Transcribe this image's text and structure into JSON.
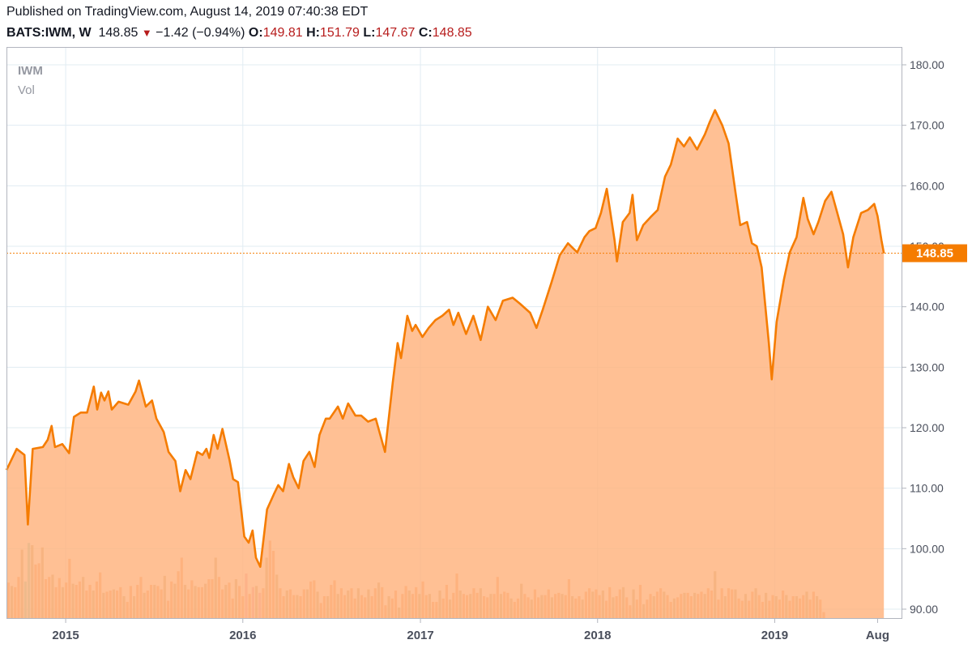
{
  "header": {
    "published": "Published on TradingView.com, August 14, 2019 07:40:38 EDT",
    "symbol": "BATS:IWM, W",
    "last": "148.85",
    "change": "−1.42 (−0.94%)",
    "open_label": "O:",
    "open": "149.81",
    "high_label": "H:",
    "high": "151.79",
    "low_label": "L:",
    "low": "147.67",
    "close_label": "C:",
    "close": "148.85"
  },
  "legend": {
    "ticker": "IWM",
    "volume": "Vol"
  },
  "price_badge": "148.85",
  "colors": {
    "line": "#f57c00",
    "area": "#ffb27d",
    "price_badge": "#f57c00",
    "grid": "#e1ecf2",
    "vol_orange": "#f7a672",
    "vol_olive": "#c9b083",
    "vol_teal": "#8fd3c7",
    "vol_pink": "#f3a1b5",
    "negative": "#b71c1c"
  },
  "chart_data": {
    "type": "area",
    "title": "IWM",
    "interval": "W",
    "y_ticks": [
      "180.00",
      "170.00",
      "160.00",
      "150.00",
      "140.00",
      "130.00",
      "120.00",
      "110.00",
      "100.00",
      "90.00"
    ],
    "ylim": [
      90,
      180
    ],
    "x_ticks": [
      "2015",
      "2016",
      "2017",
      "2018",
      "2019",
      "Aug"
    ],
    "x_tick_dates": [
      "2015-01-01",
      "2016-01-01",
      "2017-01-01",
      "2018-01-01",
      "2019-01-01",
      "2019-08-01"
    ],
    "xlim": [
      "2014-09-01",
      "2019-09-21"
    ],
    "last_price": 148.85,
    "grid": true,
    "series": [
      {
        "name": "IWM",
        "points": [
          [
            "2014-09-01",
            113.0
          ],
          [
            "2014-09-22",
            116.5
          ],
          [
            "2014-10-08",
            115.5
          ],
          [
            "2014-10-15",
            104.0
          ],
          [
            "2014-10-25",
            116.5
          ],
          [
            "2014-11-15",
            116.8
          ],
          [
            "2014-11-25",
            118.0
          ],
          [
            "2014-12-03",
            120.3
          ],
          [
            "2014-12-10",
            116.8
          ],
          [
            "2014-12-25",
            117.3
          ],
          [
            "2015-01-08",
            115.8
          ],
          [
            "2015-01-18",
            121.8
          ],
          [
            "2015-02-01",
            122.5
          ],
          [
            "2015-02-14",
            122.5
          ],
          [
            "2015-02-28",
            126.8
          ],
          [
            "2015-03-07",
            123.0
          ],
          [
            "2015-03-15",
            125.8
          ],
          [
            "2015-03-22",
            124.5
          ],
          [
            "2015-03-30",
            126.0
          ],
          [
            "2015-04-06",
            123.0
          ],
          [
            "2015-04-20",
            124.3
          ],
          [
            "2015-05-10",
            123.8
          ],
          [
            "2015-05-25",
            126.0
          ],
          [
            "2015-06-01",
            127.8
          ],
          [
            "2015-06-15",
            123.5
          ],
          [
            "2015-06-28",
            124.5
          ],
          [
            "2015-07-07",
            121.5
          ],
          [
            "2015-07-22",
            119.3
          ],
          [
            "2015-08-01",
            116.0
          ],
          [
            "2015-08-15",
            114.5
          ],
          [
            "2015-08-25",
            109.5
          ],
          [
            "2015-09-05",
            113.0
          ],
          [
            "2015-09-15",
            111.5
          ],
          [
            "2015-09-29",
            116.0
          ],
          [
            "2015-10-10",
            115.5
          ],
          [
            "2015-10-18",
            116.5
          ],
          [
            "2015-10-24",
            115.0
          ],
          [
            "2015-11-02",
            118.8
          ],
          [
            "2015-11-10",
            116.5
          ],
          [
            "2015-11-20",
            119.8
          ],
          [
            "2015-12-05",
            114.5
          ],
          [
            "2015-12-12",
            111.5
          ],
          [
            "2015-12-22",
            111.0
          ],
          [
            "2016-01-04",
            102.0
          ],
          [
            "2016-01-13",
            101.0
          ],
          [
            "2016-01-21",
            103.0
          ],
          [
            "2016-01-28",
            98.5
          ],
          [
            "2016-02-06",
            97.0
          ],
          [
            "2016-02-20",
            106.5
          ],
          [
            "2016-03-05",
            109.0
          ],
          [
            "2016-03-14",
            110.5
          ],
          [
            "2016-03-24",
            109.5
          ],
          [
            "2016-04-05",
            114.0
          ],
          [
            "2016-04-14",
            111.8
          ],
          [
            "2016-04-25",
            110.0
          ],
          [
            "2016-05-05",
            114.5
          ],
          [
            "2016-05-17",
            116.0
          ],
          [
            "2016-05-28",
            113.5
          ],
          [
            "2016-06-07",
            118.8
          ],
          [
            "2016-06-20",
            121.5
          ],
          [
            "2016-06-28",
            121.5
          ],
          [
            "2016-07-15",
            123.5
          ],
          [
            "2016-07-25",
            121.5
          ],
          [
            "2016-08-05",
            124.0
          ],
          [
            "2016-08-20",
            122.0
          ],
          [
            "2016-09-01",
            122.0
          ],
          [
            "2016-09-15",
            121.0
          ],
          [
            "2016-10-01",
            121.5
          ],
          [
            "2016-10-20",
            116.0
          ],
          [
            "2016-11-05",
            127.5
          ],
          [
            "2016-11-15",
            134.0
          ],
          [
            "2016-11-22",
            131.5
          ],
          [
            "2016-12-05",
            138.5
          ],
          [
            "2016-12-15",
            136.0
          ],
          [
            "2016-12-22",
            137.0
          ],
          [
            "2017-01-05",
            135.0
          ],
          [
            "2017-01-18",
            136.5
          ],
          [
            "2017-02-01",
            137.8
          ],
          [
            "2017-02-15",
            138.5
          ],
          [
            "2017-03-01",
            139.5
          ],
          [
            "2017-03-10",
            137.0
          ],
          [
            "2017-03-20",
            139.0
          ],
          [
            "2017-04-05",
            135.5
          ],
          [
            "2017-04-20",
            138.5
          ],
          [
            "2017-05-05",
            134.5
          ],
          [
            "2017-05-20",
            140.0
          ],
          [
            "2017-06-05",
            137.8
          ],
          [
            "2017-06-20",
            141.0
          ],
          [
            "2017-07-10",
            141.5
          ],
          [
            "2017-07-25",
            140.5
          ],
          [
            "2017-08-15",
            139.0
          ],
          [
            "2017-08-28",
            136.5
          ],
          [
            "2017-09-10",
            139.5
          ],
          [
            "2017-09-28",
            144.0
          ],
          [
            "2017-10-15",
            148.5
          ],
          [
            "2017-11-01",
            150.5
          ],
          [
            "2017-11-20",
            149.0
          ],
          [
            "2017-12-05",
            151.5
          ],
          [
            "2017-12-15",
            152.5
          ],
          [
            "2017-12-28",
            153.0
          ],
          [
            "2018-01-08",
            155.5
          ],
          [
            "2018-01-20",
            159.5
          ],
          [
            "2018-02-05",
            151.0
          ],
          [
            "2018-02-10",
            147.5
          ],
          [
            "2018-02-22",
            154.0
          ],
          [
            "2018-03-08",
            155.5
          ],
          [
            "2018-03-14",
            158.5
          ],
          [
            "2018-03-23",
            151.0
          ],
          [
            "2018-04-05",
            153.5
          ],
          [
            "2018-04-20",
            154.8
          ],
          [
            "2018-05-05",
            156.0
          ],
          [
            "2018-05-20",
            161.5
          ],
          [
            "2018-06-01",
            163.5
          ],
          [
            "2018-06-15",
            167.8
          ],
          [
            "2018-06-28",
            166.5
          ],
          [
            "2018-07-10",
            168.0
          ],
          [
            "2018-07-25",
            166.0
          ],
          [
            "2018-08-10",
            168.5
          ],
          [
            "2018-08-20",
            170.5
          ],
          [
            "2018-08-31",
            172.5
          ],
          [
            "2018-09-15",
            170.0
          ],
          [
            "2018-09-28",
            167.0
          ],
          [
            "2018-10-12",
            159.0
          ],
          [
            "2018-10-22",
            153.5
          ],
          [
            "2018-11-05",
            154.0
          ],
          [
            "2018-11-15",
            150.5
          ],
          [
            "2018-11-25",
            150.0
          ],
          [
            "2018-12-05",
            146.5
          ],
          [
            "2018-12-20",
            134.0
          ],
          [
            "2018-12-26",
            128.0
          ],
          [
            "2019-01-05",
            137.5
          ],
          [
            "2019-01-20",
            144.5
          ],
          [
            "2019-02-01",
            149.0
          ],
          [
            "2019-02-15",
            151.5
          ],
          [
            "2019-03-01",
            158.0
          ],
          [
            "2019-03-10",
            154.5
          ],
          [
            "2019-03-22",
            152.0
          ],
          [
            "2019-04-01",
            154.0
          ],
          [
            "2019-04-15",
            157.5
          ],
          [
            "2019-04-28",
            159.0
          ],
          [
            "2019-05-10",
            155.5
          ],
          [
            "2019-05-22",
            152.0
          ],
          [
            "2019-06-01",
            146.5
          ],
          [
            "2019-06-12",
            151.5
          ],
          [
            "2019-06-28",
            155.5
          ],
          [
            "2019-07-12",
            156.0
          ],
          [
            "2019-07-25",
            157.0
          ],
          [
            "2019-08-01",
            155.0
          ],
          [
            "2019-08-09",
            151.0
          ],
          [
            "2019-08-14",
            148.85
          ]
        ]
      }
    ],
    "volume": {
      "name": "Vol",
      "start_date": "2014-09-05",
      "step_days": 7,
      "scale_max": 100,
      "values": [
        32,
        29,
        28,
        37,
        61,
        33,
        67,
        65,
        48,
        49,
        63,
        35,
        37,
        39,
        28,
        36,
        28,
        32,
        53,
        31,
        30,
        33,
        37,
        25,
        30,
        25,
        33,
        41,
        23,
        24,
        25,
        26,
        25,
        28,
        20,
        15,
        29,
        20,
        30,
        37,
        23,
        25,
        30,
        30,
        29,
        26,
        38,
        16,
        33,
        31,
        42,
        54,
        30,
        26,
        34,
        29,
        28,
        28,
        31,
        35,
        35,
        54,
        37,
        26,
        30,
        32,
        18,
        35,
        29,
        20,
        40,
        22,
        28,
        29,
        23,
        27,
        54,
        69,
        60,
        39,
        27,
        20,
        25,
        26,
        21,
        21,
        20,
        26,
        26,
        33,
        34,
        24,
        14,
        20,
        20,
        30,
        34,
        22,
        27,
        21,
        25,
        27,
        18,
        27,
        21,
        19,
        26,
        20,
        27,
        32,
        28,
        12,
        20,
        18,
        25,
        10,
        22,
        29,
        25,
        22,
        28,
        22,
        33,
        21,
        22,
        15,
        15,
        25,
        18,
        30,
        17,
        23,
        40,
        25,
        22,
        21,
        22,
        27,
        23,
        27,
        20,
        19,
        22,
        22,
        37,
        22,
        24,
        23,
        18,
        15,
        18,
        31,
        22,
        19,
        17,
        26,
        19,
        21,
        21,
        26,
        19,
        22,
        23,
        22,
        21,
        35,
        20,
        18,
        20,
        17,
        24,
        27,
        24,
        26,
        21,
        25,
        16,
        28,
        19,
        20,
        26,
        28,
        19,
        12,
        26,
        17,
        30,
        13,
        17,
        22,
        20,
        24,
        27,
        24,
        21,
        15,
        18,
        19,
        22,
        23,
        23,
        20,
        23,
        22,
        24,
        22,
        27,
        25,
        42,
        17,
        27,
        20,
        27,
        26,
        26,
        18,
        16,
        22,
        16,
        24,
        27,
        21,
        15,
        23,
        16,
        21,
        20,
        17,
        25,
        21,
        16,
        20,
        20,
        18,
        21,
        24,
        17,
        24,
        20,
        17,
        6
      ]
    }
  }
}
